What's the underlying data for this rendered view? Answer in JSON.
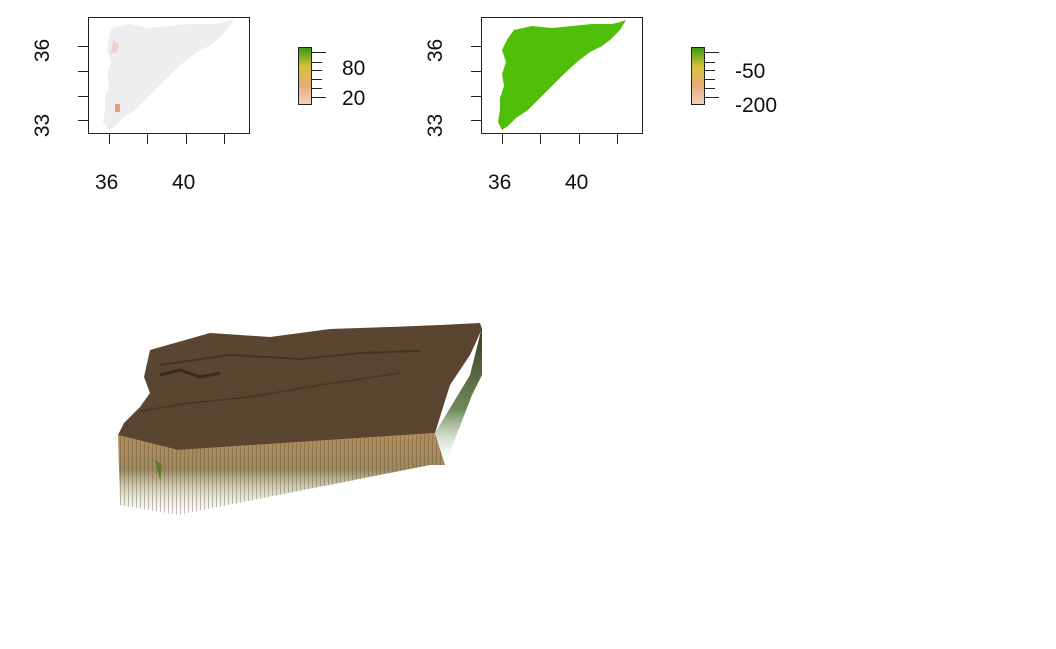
{
  "panels": [
    {
      "name": "left-raster",
      "x_ticks": [
        "36",
        "40"
      ],
      "y_ticks": [
        "36",
        "33"
      ],
      "legend": {
        "labels": [
          "80",
          "20"
        ],
        "colors": [
          "#3a9a16",
          "#d6c23a",
          "#e8ac78",
          "#f2cfc0"
        ]
      },
      "fill_color": "#eeeeee",
      "accent_color": "#e8b4a4"
    },
    {
      "name": "right-raster",
      "x_ticks": [
        "36",
        "40"
      ],
      "y_ticks": [
        "36",
        "33"
      ],
      "legend": {
        "labels": [
          "-50",
          "-200"
        ],
        "colors": [
          "#3a9a16",
          "#d6c23a",
          "#e8ac78",
          "#f2cfc0"
        ]
      },
      "fill_color": "#4fbf0a"
    }
  ],
  "perspective": {
    "top_color": "#5a4530",
    "side_top_color": "#b58d5a",
    "side_bottom_color": "#cfe3c4"
  }
}
